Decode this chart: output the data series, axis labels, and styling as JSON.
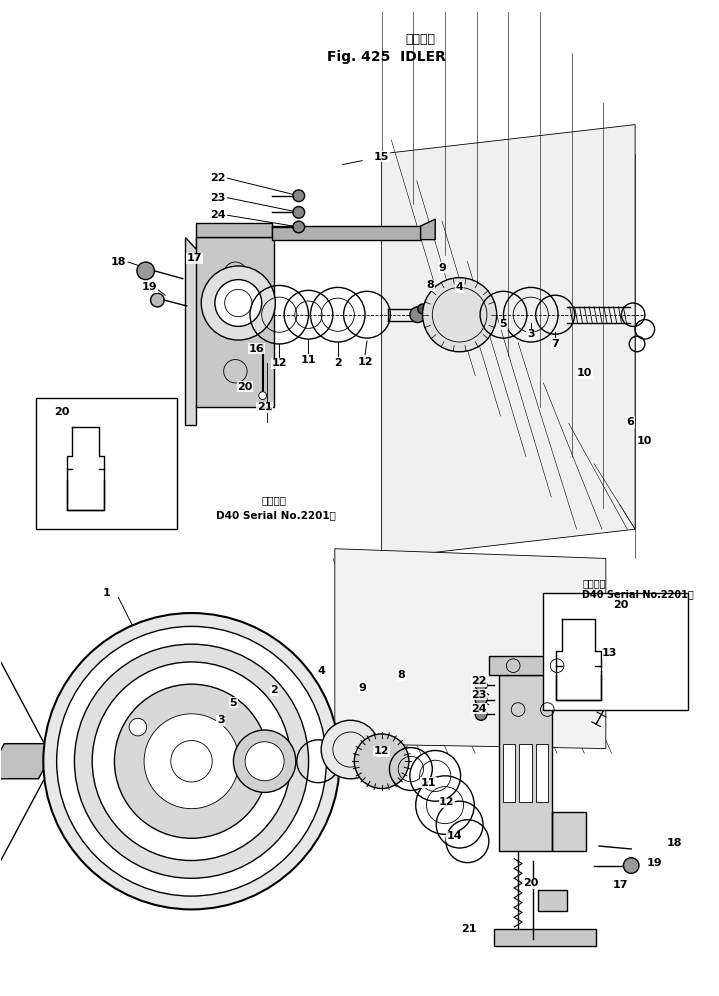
{
  "title_japanese": "アイドラ",
  "title_english": "Fig. 425  IDLER",
  "background_color": "#ffffff",
  "line_color": "#000000",
  "fig_width": 7.19,
  "fig_height": 9.96,
  "dpi": 100,
  "note_top": "適用号機\nD40 Serial No.2201～",
  "note_bottom": "適用号機\nD40 Serial No.2201～"
}
